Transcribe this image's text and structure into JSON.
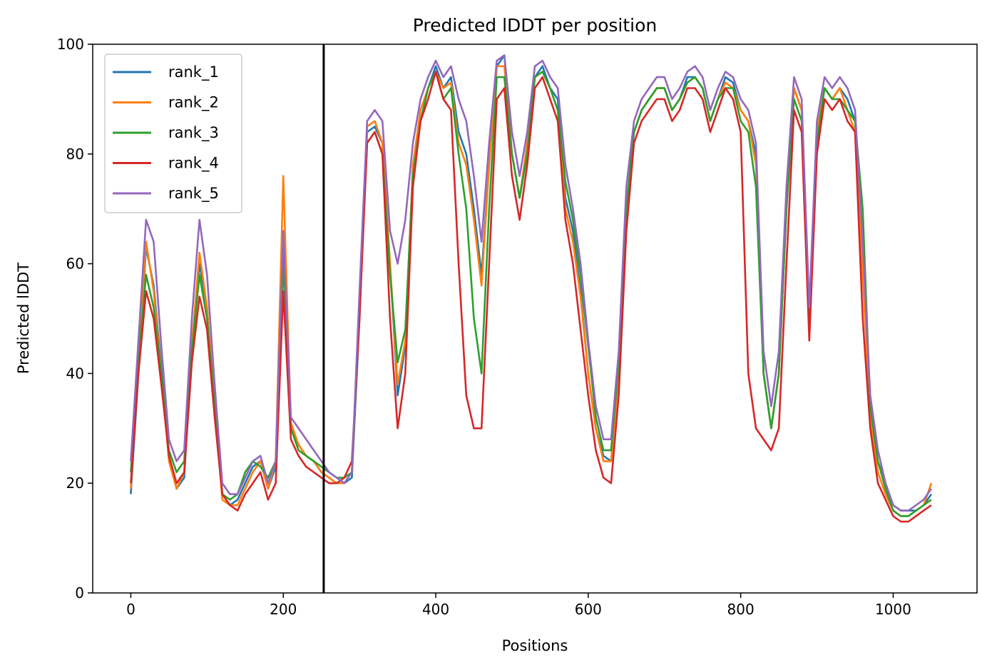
{
  "chart_data": {
    "type": "line",
    "title": "Predicted lDDT per position",
    "xlabel": "Positions",
    "ylabel": "Predicted lDDT",
    "xlim": [
      -50,
      1110
    ],
    "ylim": [
      0,
      100
    ],
    "xticks": [
      0,
      200,
      400,
      600,
      800,
      1000
    ],
    "yticks": [
      0,
      20,
      40,
      60,
      80,
      100
    ],
    "grid": false,
    "legend_position": "top-left",
    "vline": 253,
    "vline_color": "#000000",
    "x_step": 10,
    "series": [
      {
        "name": "rank_1",
        "color": "#1f77b4",
        "values": [
          18,
          40,
          63,
          56,
          41,
          25,
          19,
          21,
          45,
          60,
          52,
          34,
          18,
          16,
          17,
          20,
          23,
          24,
          19,
          23,
          65,
          30,
          27,
          25,
          24,
          22,
          21,
          20,
          20,
          21,
          50,
          84,
          85,
          82,
          60,
          36,
          45,
          78,
          86,
          92,
          96,
          92,
          94,
          84,
          80,
          70,
          58,
          78,
          96,
          98,
          80,
          72,
          80,
          94,
          96,
          92,
          90,
          72,
          66,
          55,
          40,
          30,
          25,
          24,
          40,
          70,
          84,
          88,
          90,
          92,
          92,
          88,
          90,
          94,
          94,
          92,
          86,
          90,
          94,
          93,
          88,
          86,
          80,
          40,
          30,
          40,
          70,
          92,
          88,
          50,
          84,
          92,
          90,
          92,
          90,
          86,
          62,
          34,
          24,
          20,
          16,
          15,
          15,
          15,
          16,
          18
        ]
      },
      {
        "name": "rank_2",
        "color": "#ff7f0e",
        "values": [
          19,
          42,
          64,
          55,
          40,
          24,
          19,
          22,
          45,
          62,
          52,
          34,
          17,
          16,
          16,
          19,
          22,
          24,
          19,
          24,
          76,
          31,
          27,
          25,
          24,
          22,
          21,
          20,
          20,
          22,
          52,
          85,
          86,
          82,
          60,
          38,
          46,
          78,
          88,
          92,
          95,
          92,
          93,
          82,
          78,
          68,
          56,
          78,
          96,
          96,
          80,
          72,
          82,
          94,
          95,
          92,
          88,
          70,
          64,
          54,
          40,
          30,
          24,
          24,
          40,
          70,
          84,
          88,
          90,
          92,
          92,
          88,
          90,
          93,
          94,
          92,
          86,
          90,
          93,
          92,
          88,
          86,
          78,
          40,
          30,
          40,
          70,
          92,
          88,
          50,
          84,
          92,
          90,
          92,
          88,
          84,
          58,
          32,
          22,
          18,
          15,
          14,
          14,
          15,
          16,
          20
        ]
      },
      {
        "name": "rank_3",
        "color": "#2ca02c",
        "values": [
          22,
          42,
          58,
          52,
          40,
          26,
          22,
          24,
          44,
          58,
          50,
          34,
          18,
          17,
          18,
          22,
          24,
          23,
          21,
          24,
          60,
          30,
          26,
          25,
          24,
          23,
          22,
          21,
          21,
          22,
          52,
          82,
          84,
          80,
          58,
          42,
          48,
          76,
          86,
          92,
          95,
          90,
          92,
          80,
          70,
          50,
          40,
          70,
          94,
          94,
          80,
          72,
          80,
          94,
          95,
          92,
          88,
          75,
          68,
          58,
          45,
          32,
          26,
          26,
          42,
          70,
          84,
          88,
          90,
          92,
          92,
          88,
          90,
          93,
          94,
          92,
          86,
          90,
          92,
          92,
          86,
          84,
          74,
          40,
          30,
          40,
          70,
          90,
          86,
          50,
          82,
          92,
          90,
          90,
          88,
          86,
          70,
          34,
          24,
          19,
          15,
          14,
          14,
          15,
          16,
          17
        ]
      },
      {
        "name": "rank_4",
        "color": "#d62728",
        "values": [
          20,
          40,
          55,
          50,
          38,
          25,
          20,
          22,
          42,
          54,
          48,
          32,
          18,
          16,
          15,
          18,
          20,
          22,
          17,
          20,
          55,
          28,
          25,
          23,
          22,
          21,
          20,
          20,
          21,
          24,
          50,
          82,
          84,
          80,
          50,
          30,
          40,
          74,
          86,
          90,
          95,
          90,
          88,
          60,
          36,
          30,
          30,
          60,
          90,
          92,
          76,
          68,
          78,
          92,
          94,
          90,
          86,
          68,
          60,
          48,
          36,
          26,
          21,
          20,
          36,
          66,
          82,
          86,
          88,
          90,
          90,
          86,
          88,
          92,
          92,
          90,
          84,
          88,
          92,
          90,
          84,
          40,
          30,
          28,
          26,
          30,
          60,
          88,
          84,
          46,
          80,
          90,
          88,
          90,
          86,
          84,
          50,
          30,
          20,
          17,
          14,
          13,
          13,
          14,
          15,
          16
        ]
      },
      {
        "name": "rank_5",
        "color": "#9467bd",
        "values": [
          24,
          46,
          68,
          64,
          45,
          28,
          24,
          26,
          50,
          68,
          58,
          38,
          20,
          18,
          18,
          21,
          24,
          25,
          20,
          24,
          66,
          32,
          30,
          28,
          26,
          24,
          22,
          21,
          20,
          22,
          55,
          86,
          88,
          86,
          66,
          60,
          68,
          82,
          90,
          94,
          97,
          94,
          96,
          90,
          86,
          76,
          64,
          82,
          97,
          98,
          84,
          76,
          84,
          96,
          97,
          94,
          92,
          78,
          70,
          60,
          46,
          34,
          28,
          28,
          44,
          74,
          86,
          90,
          92,
          94,
          94,
          90,
          92,
          95,
          96,
          94,
          88,
          92,
          95,
          94,
          90,
          88,
          82,
          44,
          34,
          44,
          74,
          94,
          90,
          52,
          86,
          94,
          92,
          94,
          92,
          88,
          64,
          36,
          26,
          20,
          16,
          15,
          15,
          16,
          17,
          19
        ]
      }
    ]
  }
}
